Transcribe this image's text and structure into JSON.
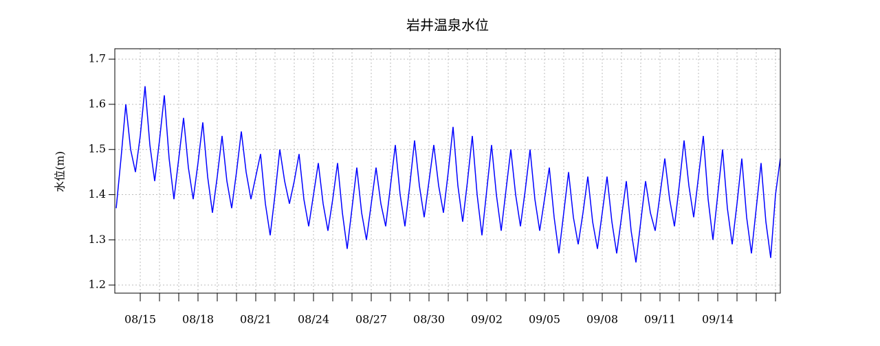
{
  "chart_data": {
    "type": "line",
    "title": "岩井温泉水位",
    "y_label": "水位(m)",
    "color": "#0000ff",
    "categories": [
      null,
      null,
      null,
      null,
      null,
      "08/15",
      null,
      null,
      null,
      null,
      null,
      null,
      null,
      null,
      null,
      null,
      null,
      "08/18",
      null,
      null,
      null,
      null,
      null,
      null,
      null,
      null,
      null,
      null,
      null,
      "08/21",
      null,
      null,
      null,
      null,
      null,
      null,
      null,
      null,
      null,
      null,
      null,
      "08/24",
      null,
      null,
      null,
      null,
      null,
      null,
      null,
      null,
      null,
      null,
      null,
      "08/27",
      null,
      null,
      null,
      null,
      null,
      null,
      null,
      null,
      null,
      null,
      null,
      "08/30",
      null,
      null,
      null,
      null,
      null,
      null,
      null,
      null,
      null,
      null,
      null,
      "09/02",
      null,
      null,
      null,
      null,
      null,
      null,
      null,
      null,
      null,
      null,
      null,
      "09/05",
      null,
      null,
      null,
      null,
      null,
      null,
      null,
      null,
      null,
      null,
      null,
      "09/08",
      null,
      null,
      null,
      null,
      null,
      null,
      null,
      null,
      null,
      null,
      null,
      "09/11",
      null,
      null,
      null,
      null,
      null,
      null,
      null,
      null,
      null,
      null,
      null,
      "09/14",
      null,
      null,
      null,
      null,
      null,
      null,
      null,
      null,
      null,
      null,
      null,
      null,
      null
    ],
    "values": [
      1.37,
      1.48,
      1.6,
      1.5,
      1.45,
      1.53,
      1.64,
      1.51,
      1.43,
      1.52,
      1.62,
      1.48,
      1.39,
      1.48,
      1.57,
      1.46,
      1.39,
      1.47,
      1.56,
      1.44,
      1.36,
      1.44,
      1.53,
      1.43,
      1.37,
      1.45,
      1.54,
      1.45,
      1.39,
      1.44,
      1.49,
      1.38,
      1.31,
      1.4,
      1.5,
      1.43,
      1.38,
      1.43,
      1.49,
      1.39,
      1.33,
      1.4,
      1.47,
      1.38,
      1.32,
      1.39,
      1.47,
      1.36,
      1.28,
      1.37,
      1.46,
      1.36,
      1.3,
      1.38,
      1.46,
      1.38,
      1.33,
      1.42,
      1.51,
      1.4,
      1.33,
      1.42,
      1.52,
      1.42,
      1.35,
      1.43,
      1.51,
      1.42,
      1.36,
      1.45,
      1.55,
      1.42,
      1.34,
      1.43,
      1.53,
      1.4,
      1.31,
      1.41,
      1.51,
      1.4,
      1.32,
      1.41,
      1.5,
      1.4,
      1.33,
      1.41,
      1.5,
      1.39,
      1.32,
      1.39,
      1.46,
      1.35,
      1.27,
      1.36,
      1.45,
      1.35,
      1.29,
      1.36,
      1.44,
      1.34,
      1.28,
      1.36,
      1.44,
      1.34,
      1.27,
      1.35,
      1.43,
      1.32,
      1.25,
      1.34,
      1.43,
      1.36,
      1.32,
      1.4,
      1.48,
      1.39,
      1.33,
      1.42,
      1.52,
      1.42,
      1.35,
      1.44,
      1.53,
      1.39,
      1.3,
      1.4,
      1.5,
      1.37,
      1.29,
      1.38,
      1.48,
      1.35,
      1.27,
      1.37,
      1.47,
      1.34,
      1.26,
      1.4,
      1.48
    ],
    "ylim": [
      1.182,
      1.723
    ],
    "yticks": [
      1.2,
      1.3,
      1.4,
      1.5,
      1.6,
      1.7
    ],
    "grid": true
  }
}
